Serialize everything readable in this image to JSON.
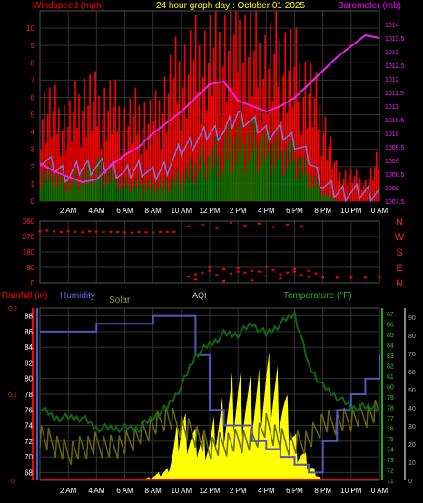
{
  "chart_data": [
    {
      "type": "bar",
      "title": "24 hour graph day : October 01 2025",
      "left_axis_label": "Windspeed (mph)",
      "right_axis_label": "Barometer (mb)",
      "x_ticks": [
        "2 AM",
        "4 AM",
        "6 AM",
        "8 AM",
        "10 AM",
        "12 PM",
        "2 PM",
        "4 PM",
        "6 PM",
        "8 PM",
        "10 PM",
        "0 AM"
      ],
      "wind_ylim": [
        0,
        11
      ],
      "wind_yticks": [
        "0",
        "1",
        "2",
        "3",
        "4",
        "5",
        "6",
        "7",
        "8",
        "9",
        "10"
      ],
      "baro_ylim": [
        1007.5,
        1014.5
      ],
      "baro_yticks": [
        "1007.5",
        "1008",
        "1008.5",
        "1009",
        "1009.5",
        "1010",
        "1010.5",
        "1011",
        "1011.5",
        "1012",
        "1012.5",
        "1013",
        "1013.5",
        "1014"
      ],
      "hours": [
        0,
        1,
        2,
        3,
        4,
        5,
        6,
        7,
        8,
        9,
        10,
        11,
        12,
        13,
        14,
        15,
        16,
        17,
        18,
        19,
        20,
        21,
        22,
        23,
        24
      ],
      "series": [
        {
          "name": "gust",
          "color": "#ff0000",
          "values": [
            5.5,
            5.0,
            4.5,
            6.0,
            5.5,
            5.5,
            4.5,
            5.0,
            4.5,
            6.5,
            7.5,
            8.0,
            8.5,
            9.0,
            9.5,
            8.5,
            8.0,
            8.5,
            7.5,
            6.5,
            4.5,
            1.5,
            1.5,
            1.0,
            2.5
          ]
        },
        {
          "name": "average",
          "color": "#7777dd",
          "values": [
            2.5,
            2.0,
            1.5,
            2.0,
            2.0,
            2.0,
            1.5,
            2.0,
            1.5,
            2.0,
            3.0,
            3.5,
            4.0,
            4.0,
            5.0,
            4.5,
            4.0,
            4.0,
            3.5,
            2.5,
            1.0,
            0.5,
            0.5,
            0.5,
            0.5
          ]
        },
        {
          "name": "speed",
          "color": "#007700",
          "values": [
            1.5,
            1.5,
            1.0,
            1.5,
            2.0,
            1.5,
            1.0,
            1.0,
            1.0,
            1.0,
            1.5,
            2.0,
            2.5,
            3.0,
            3.5,
            3.5,
            3.0,
            3.0,
            2.5,
            1.5,
            0.5,
            0,
            0,
            0,
            0
          ]
        },
        {
          "name": "barometer",
          "color": "#ee22ee",
          "values": [
            1008.9,
            1008.6,
            1008.4,
            1008.2,
            1008.3,
            1008.8,
            1009.2,
            1009.5,
            1010.0,
            1010.4,
            1010.8,
            1011.3,
            1011.8,
            1011.9,
            1011.2,
            1011.0,
            1010.8,
            1011.0,
            1011.3,
            1011.8,
            1012.3,
            1012.8,
            1013.2,
            1013.6,
            1013.5
          ]
        }
      ]
    },
    {
      "type": "scatter",
      "axis_ticks": [
        "360",
        "270",
        "180",
        "90",
        "0"
      ],
      "ylim": [
        0,
        360
      ],
      "compass_labels": [
        "N",
        "W",
        "S",
        "E",
        "N"
      ],
      "series": [
        {
          "name": "direction",
          "color": "#ff0000",
          "x": [
            0,
            0.5,
            1,
            1.5,
            2,
            2.5,
            3,
            3.5,
            4,
            4.5,
            5,
            5.5,
            6,
            6.5,
            7,
            7.5,
            8,
            8.5,
            9,
            9.5,
            10.5,
            11,
            11.5,
            12,
            12.5,
            13,
            13.5,
            14,
            14.5,
            15,
            15.5,
            16,
            16.5,
            17,
            17.5,
            18,
            18.5,
            19,
            19.5,
            20,
            21,
            22,
            23,
            24,
            10.5,
            11.5,
            12.5,
            13.5,
            14.5,
            15.5,
            16.5,
            17.5,
            18.5,
            11,
            12,
            13,
            14,
            15,
            16,
            17,
            18,
            19
          ],
          "y": [
            300,
            305,
            300,
            296,
            300,
            297,
            295,
            300,
            298,
            296,
            297,
            296,
            295,
            293,
            296,
            295,
            294,
            297,
            297,
            297,
            36,
            50,
            60,
            70,
            45,
            80,
            55,
            65,
            60,
            70,
            65,
            40,
            75,
            50,
            60,
            65,
            45,
            70,
            55,
            30,
            30,
            30,
            30,
            30,
            330,
            340,
            320,
            350,
            335,
            345,
            325,
            340,
            330,
            20,
            90,
            10,
            85,
            15,
            95,
            25,
            80,
            35
          ]
        }
      ]
    },
    {
      "type": "line",
      "labels": {
        "rain": "Rainfall (in)",
        "humidity": "Humidity",
        "solar": "Solar",
        "aqi": "AQI",
        "temperature": "Temperature (°F)"
      },
      "x_ticks": [
        "2 AM",
        "4 AM",
        "6 AM",
        "8 AM",
        "10 AM",
        "12 PM",
        "2 PM",
        "4 PM",
        "6 PM",
        "8 PM",
        "10 PM",
        "0 AM"
      ],
      "rain_yticks": [
        "0",
        "0.1",
        "0.2"
      ],
      "rain_ylim": [
        0,
        0.2
      ],
      "humidity_yticks": [
        "68",
        "70",
        "72",
        "74",
        "76",
        "78",
        "80",
        "82",
        "84",
        "86",
        "88"
      ],
      "humidity_ylim": [
        67,
        89
      ],
      "temperature_yticks": [
        "71",
        "72",
        "73",
        "74",
        "75",
        "76",
        "77",
        "78",
        "79",
        "80",
        "81",
        "82",
        "83",
        "84",
        "85",
        "86",
        "87"
      ],
      "temperature_ylim": [
        71,
        87.5
      ],
      "solar_yticks": [
        "0",
        "10",
        "20",
        "30",
        "40",
        "50",
        "60",
        "70",
        "80",
        "90"
      ],
      "solar_ylim": [
        0,
        95
      ],
      "hours": [
        0,
        1,
        2,
        3,
        4,
        5,
        6,
        7,
        8,
        9,
        10,
        11,
        12,
        13,
        14,
        15,
        16,
        17,
        18,
        19,
        20,
        21,
        22,
        23,
        24
      ],
      "series": [
        {
          "name": "Humidity",
          "color": "#5555bb",
          "values": [
            86,
            86,
            86,
            86,
            87,
            87,
            87,
            87,
            88,
            88,
            88,
            83,
            76,
            74,
            74,
            72,
            71,
            70,
            69,
            68,
            72,
            76,
            78,
            80,
            83
          ]
        },
        {
          "name": "Temperature",
          "color": "#116611",
          "values": [
            78,
            77,
            77,
            77,
            76,
            76,
            76,
            76,
            77,
            78,
            80,
            83,
            84,
            85,
            85,
            86,
            85,
            86,
            87,
            82,
            80,
            79,
            78,
            78,
            78
          ]
        },
        {
          "name": "Solar",
          "color": "#ffff00",
          "values": [
            0,
            0,
            0,
            0,
            0,
            0,
            0,
            0,
            2,
            5,
            30,
            20,
            20,
            35,
            45,
            40,
            50,
            45,
            20,
            8,
            0,
            0,
            0,
            0,
            0
          ]
        },
        {
          "name": "AQI",
          "color": "#666611",
          "values": [
            25,
            20,
            15,
            18,
            20,
            18,
            20,
            25,
            30,
            35,
            30,
            25,
            18,
            20,
            22,
            22,
            30,
            22,
            20,
            22,
            32,
            32,
            34,
            36,
            38
          ]
        },
        {
          "name": "Rainfall",
          "color": "#ff0000",
          "values": [
            0,
            0,
            0,
            0,
            0,
            0,
            0,
            0,
            0,
            0,
            0,
            0,
            0,
            0,
            0,
            0,
            0,
            0,
            0,
            0,
            0,
            0,
            0,
            0,
            0
          ]
        }
      ]
    }
  ]
}
